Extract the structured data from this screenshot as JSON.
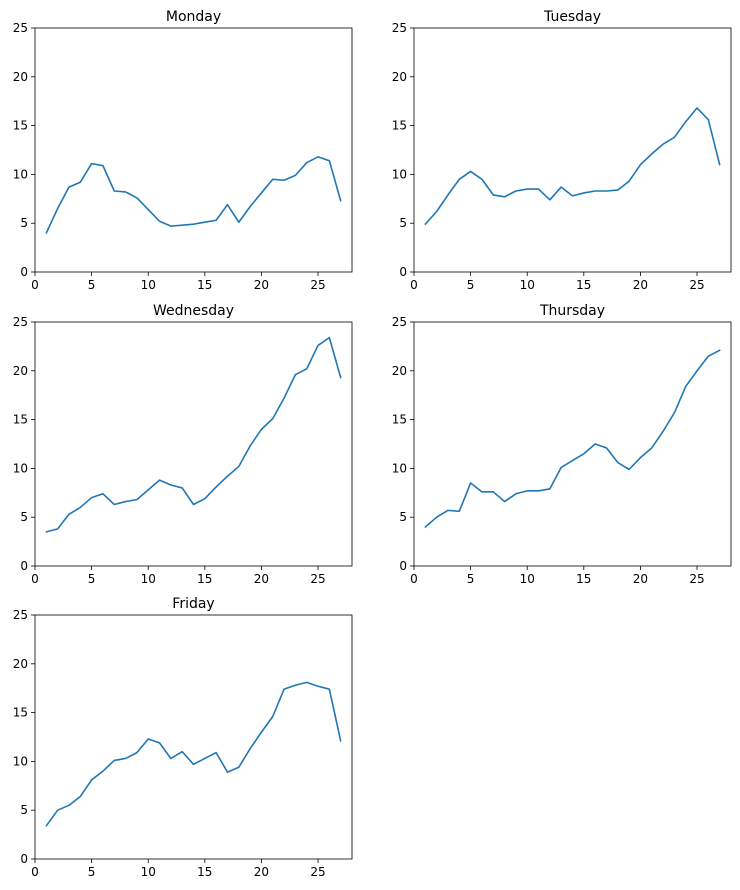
{
  "figure": {
    "line_color": "#1f77b4",
    "axis_color": "#000000",
    "background": "#ffffff"
  },
  "chart_data": [
    {
      "type": "line",
      "title": "Monday",
      "xlabel": "",
      "ylabel": "",
      "xlim": [
        0,
        28
      ],
      "ylim": [
        0,
        25
      ],
      "xticks": [
        0,
        5,
        10,
        15,
        20,
        25
      ],
      "yticks": [
        0,
        5,
        10,
        15,
        20,
        25
      ],
      "grid": false,
      "x": [
        1,
        2,
        3,
        4,
        5,
        6,
        7,
        8,
        9,
        10,
        11,
        12,
        13,
        14,
        15,
        16,
        17,
        18,
        19,
        20,
        21,
        22,
        23,
        24,
        25,
        26,
        27
      ],
      "series": [
        {
          "values": [
            4.0,
            6.5,
            8.7,
            9.2,
            11.1,
            10.9,
            8.3,
            8.2,
            7.6,
            6.4,
            5.2,
            4.7,
            4.8,
            4.9,
            5.1,
            5.3,
            6.9,
            5.1,
            6.7,
            8.1,
            9.5,
            9.4,
            9.9,
            11.2,
            11.8,
            11.4,
            7.3
          ]
        }
      ]
    },
    {
      "type": "line",
      "title": "Tuesday",
      "xlabel": "",
      "ylabel": "",
      "xlim": [
        0,
        28
      ],
      "ylim": [
        0,
        25
      ],
      "xticks": [
        0,
        5,
        10,
        15,
        20,
        25
      ],
      "yticks": [
        0,
        5,
        10,
        15,
        20,
        25
      ],
      "grid": false,
      "x": [
        1,
        2,
        3,
        4,
        5,
        6,
        7,
        8,
        9,
        10,
        11,
        12,
        13,
        14,
        15,
        16,
        17,
        18,
        19,
        20,
        21,
        22,
        23,
        24,
        25,
        26,
        27
      ],
      "series": [
        {
          "values": [
            4.9,
            6.2,
            7.9,
            9.5,
            10.3,
            9.5,
            7.9,
            7.7,
            8.3,
            8.5,
            8.5,
            7.4,
            8.7,
            7.8,
            8.1,
            8.3,
            8.3,
            8.4,
            9.3,
            11.0,
            12.1,
            13.1,
            13.8,
            15.4,
            16.8,
            15.6,
            11.0
          ]
        }
      ]
    },
    {
      "type": "line",
      "title": "Wednesday",
      "xlabel": "",
      "ylabel": "",
      "xlim": [
        0,
        28
      ],
      "ylim": [
        0,
        25
      ],
      "xticks": [
        0,
        5,
        10,
        15,
        20,
        25
      ],
      "yticks": [
        0,
        5,
        10,
        15,
        20,
        25
      ],
      "grid": false,
      "x": [
        1,
        2,
        3,
        4,
        5,
        6,
        7,
        8,
        9,
        10,
        11,
        12,
        13,
        14,
        15,
        16,
        17,
        18,
        19,
        20,
        21,
        22,
        23,
        24,
        25,
        26,
        27
      ],
      "series": [
        {
          "values": [
            3.5,
            3.8,
            5.3,
            6.0,
            7.0,
            7.4,
            6.3,
            6.6,
            6.8,
            7.8,
            8.8,
            8.3,
            8.0,
            6.3,
            6.9,
            8.1,
            9.2,
            10.2,
            12.3,
            14.0,
            15.1,
            17.2,
            19.6,
            20.2,
            22.6,
            23.4,
            19.3
          ]
        }
      ]
    },
    {
      "type": "line",
      "title": "Thursday",
      "xlabel": "",
      "ylabel": "",
      "xlim": [
        0,
        28
      ],
      "ylim": [
        0,
        25
      ],
      "xticks": [
        0,
        5,
        10,
        15,
        20,
        25
      ],
      "yticks": [
        0,
        5,
        10,
        15,
        20,
        25
      ],
      "grid": false,
      "x": [
        1,
        2,
        3,
        4,
        5,
        6,
        7,
        8,
        9,
        10,
        11,
        12,
        13,
        14,
        15,
        16,
        17,
        18,
        19,
        20,
        21,
        22,
        23,
        24,
        25,
        26,
        27
      ],
      "series": [
        {
          "values": [
            4.0,
            5.0,
            5.7,
            5.6,
            8.5,
            7.6,
            7.6,
            6.6,
            7.4,
            7.7,
            7.7,
            7.9,
            10.1,
            10.8,
            11.5,
            12.5,
            12.1,
            10.6,
            9.9,
            11.1,
            12.1,
            13.8,
            15.7,
            18.4,
            20.0,
            21.5,
            22.1
          ]
        }
      ]
    },
    {
      "type": "line",
      "title": "Friday",
      "xlabel": "",
      "ylabel": "",
      "xlim": [
        0,
        28
      ],
      "ylim": [
        0,
        25
      ],
      "xticks": [
        0,
        5,
        10,
        15,
        20,
        25
      ],
      "yticks": [
        0,
        5,
        10,
        15,
        20,
        25
      ],
      "grid": false,
      "x": [
        1,
        2,
        3,
        4,
        5,
        6,
        7,
        8,
        9,
        10,
        11,
        12,
        13,
        14,
        15,
        16,
        17,
        18,
        19,
        20,
        21,
        22,
        23,
        24,
        25,
        26,
        27
      ],
      "series": [
        {
          "values": [
            3.4,
            5.0,
            5.5,
            6.4,
            8.1,
            9.0,
            10.1,
            10.3,
            10.9,
            12.3,
            11.9,
            10.3,
            11.0,
            9.7,
            10.3,
            10.9,
            8.9,
            9.4,
            11.3,
            13.0,
            14.6,
            17.4,
            17.8,
            18.1,
            17.7,
            17.4,
            12.1
          ]
        }
      ]
    }
  ]
}
